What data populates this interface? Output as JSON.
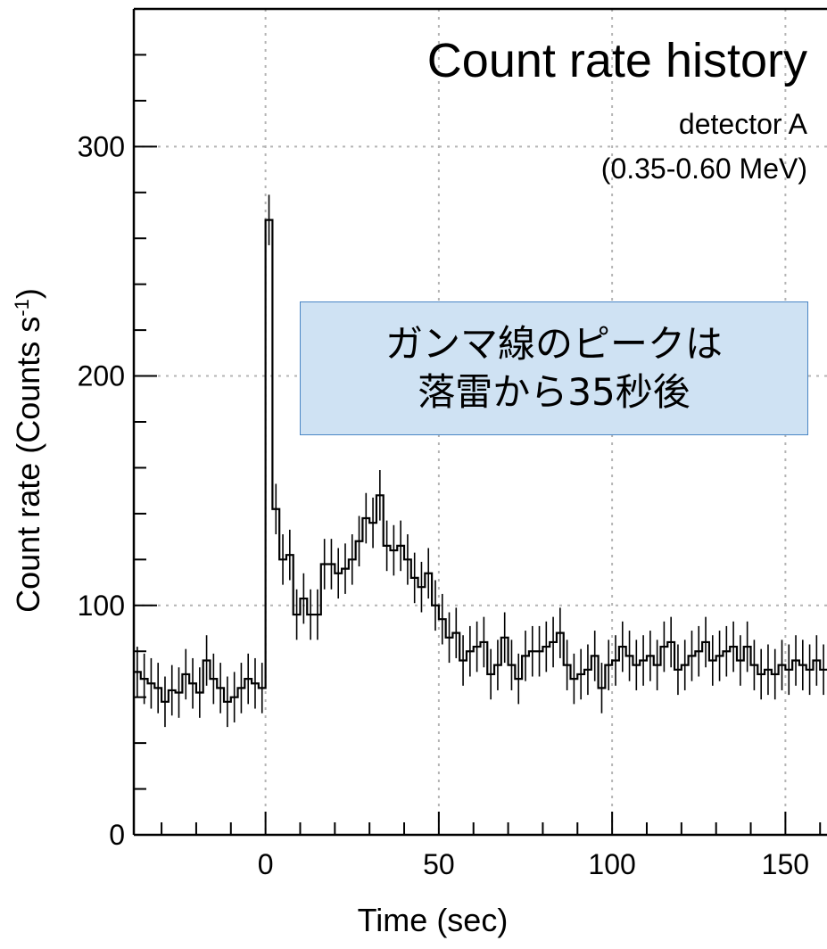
{
  "chart_data": {
    "type": "line",
    "style": "step histogram with error bars",
    "title": "Count rate history",
    "subtitle_lines": [
      "detector A",
      "(0.35-0.60 MeV)"
    ],
    "xlabel": "Time (sec)",
    "ylabel": "Count rate (Counts s",
    "ylabel_sup": "-1",
    "ylabel_close": ")",
    "xlim": [
      -38,
      162
    ],
    "ylim": [
      0,
      360
    ],
    "xticks": [
      0,
      50,
      100,
      150
    ],
    "yticks": [
      0,
      100,
      200,
      300
    ],
    "x_minor_step": 10,
    "y_minor_step": 20,
    "grid": "dotted at major ticks",
    "bin_width_sec": 2,
    "error_bar_halfwidth": 11,
    "series": [
      {
        "x_start": -38,
        "values": [
          71,
          68,
          66,
          64,
          58,
          63,
          62,
          70,
          66,
          62,
          76,
          68,
          64,
          58,
          60,
          64,
          68,
          66,
          64,
          268,
          142,
          120,
          122,
          96,
          103,
          96,
          96,
          118,
          118,
          114,
          116,
          120,
          128,
          138,
          136,
          148,
          126,
          124,
          126,
          120,
          112,
          108,
          114,
          100,
          94,
          86,
          88,
          76,
          80,
          82,
          84,
          70,
          74,
          86,
          74,
          68,
          78,
          80,
          80,
          82,
          84,
          88,
          74,
          68,
          70,
          72,
          78,
          64,
          74,
          76,
          82,
          78,
          74,
          76,
          78,
          74,
          82,
          84,
          72,
          74,
          78,
          80,
          84,
          76,
          78,
          80,
          82,
          76,
          82,
          74,
          70,
          72,
          70,
          74,
          72,
          76,
          74,
          72,
          76,
          72
        ]
      }
    ]
  },
  "annotation": {
    "line1": "ガンマ線のピークは",
    "line2": "落雷から35秒後"
  }
}
